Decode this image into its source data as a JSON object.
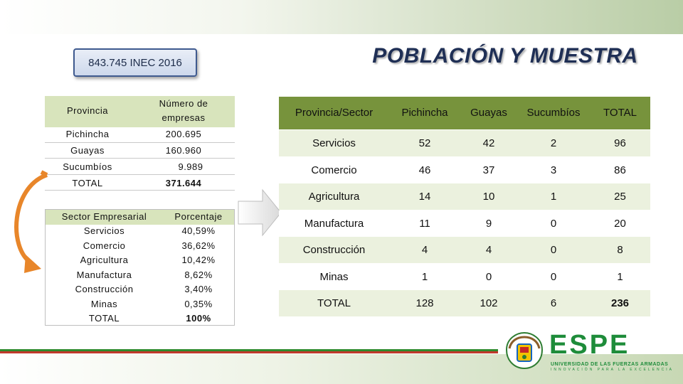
{
  "slide": {
    "title": "POBLACIÓN Y MUESTRA",
    "population_box": "843.745 INEC 2016"
  },
  "provincia_table": {
    "headers": [
      "Provincia",
      "Número de empresas"
    ],
    "header_line1": "Número de",
    "header_line2": "empresas",
    "rows": [
      [
        "Pichincha",
        "200.695"
      ],
      [
        "Guayas",
        "160.960"
      ],
      [
        "Sucumbíos",
        "9.989"
      ],
      [
        "TOTAL",
        "371.644"
      ]
    ]
  },
  "sector_table": {
    "headers": [
      "Sector Empresarial",
      "Porcentaje"
    ],
    "rows": [
      [
        "Servicios",
        "40,59%"
      ],
      [
        "Comercio",
        "36,62%"
      ],
      [
        "Agricultura",
        "10,42%"
      ],
      [
        "Manufactura",
        "8,62%"
      ],
      [
        "Construcción",
        "3,40%"
      ],
      [
        "Minas",
        "0,35%"
      ],
      [
        "TOTAL",
        "100%"
      ]
    ]
  },
  "muestra_table": {
    "headers": [
      "Provincia/Sector",
      "Pichincha",
      "Guayas",
      "Sucumbíos",
      "TOTAL"
    ],
    "rows": [
      [
        "Servicios",
        "52",
        "42",
        "2",
        "96"
      ],
      [
        "Comercio",
        "46",
        "37",
        "3",
        "86"
      ],
      [
        "Agricultura",
        "14",
        "10",
        "1",
        "25"
      ],
      [
        "Manufactura",
        "11",
        "9",
        "0",
        "20"
      ],
      [
        "Construcción",
        "4",
        "4",
        "0",
        "8"
      ],
      [
        "Minas",
        "1",
        "0",
        "0",
        "1"
      ],
      [
        "TOTAL",
        "128",
        "102",
        "6",
        "236"
      ]
    ]
  },
  "logo": {
    "name": "ESPE",
    "subtitle": "UNIVERSIDAD DE LAS FUERZAS ARMADAS",
    "tagline": "INNOVACIÓN PARA LA EXCELENCIA"
  },
  "colors": {
    "header_green": "#77933c",
    "light_green": "#d8e4bc",
    "row_green": "#ebf1de",
    "title_navy": "#1f2f55",
    "arrow_orange": "#e8862a",
    "logo_green": "#1e8c3a"
  }
}
